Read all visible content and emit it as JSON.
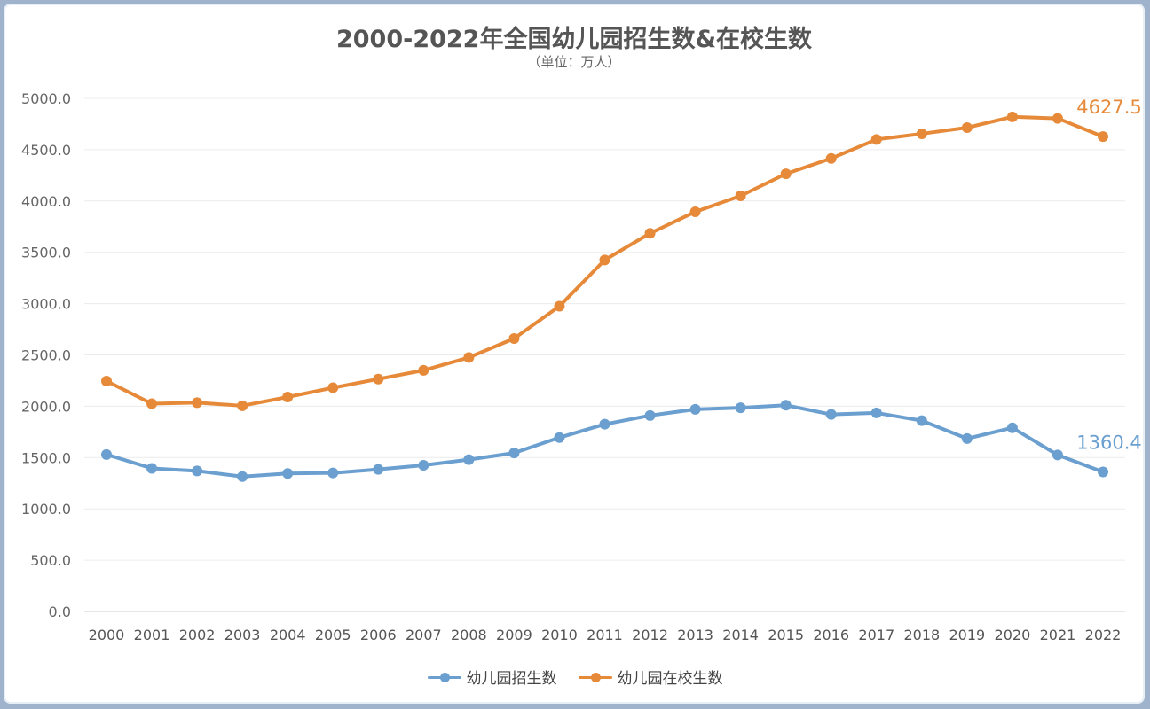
{
  "header": {
    "title": "2000-2022年全国幼儿园招生数&在校生数",
    "subtitle": "（单位：万人）"
  },
  "chart_data": {
    "type": "line",
    "title": "2000-2022年全国幼儿园招生数&在校生数",
    "subtitle": "（单位：万人）",
    "xlabel": "",
    "ylabel": "",
    "x": [
      "2000",
      "2001",
      "2002",
      "2003",
      "2004",
      "2005",
      "2006",
      "2007",
      "2008",
      "2009",
      "2010",
      "2011",
      "2012",
      "2013",
      "2014",
      "2015",
      "2016",
      "2017",
      "2018",
      "2019",
      "2020",
      "2021",
      "2022"
    ],
    "yticks": [
      "0.0",
      "500.0",
      "1000.0",
      "1500.0",
      "2000.0",
      "2500.0",
      "3000.0",
      "3500.0",
      "4000.0",
      "4500.0",
      "5000.0"
    ],
    "ylim": [
      0,
      5000
    ],
    "grid": true,
    "legend_position": "bottom",
    "series": [
      {
        "name": "幼儿园招生数",
        "color": "#6a9fcf",
        "values": [
          1530,
          1395,
          1370,
          1315,
          1345,
          1350,
          1385,
          1425,
          1480,
          1545,
          1695,
          1825,
          1910,
          1970,
          1985,
          2010,
          1920,
          1935,
          1860,
          1685,
          1790,
          1525,
          1360.4
        ],
        "end_label": "1360.4"
      },
      {
        "name": "幼儿园在校生数",
        "color": "#e68a3a",
        "values": [
          2245,
          2025,
          2035,
          2005,
          2090,
          2180,
          2265,
          2350,
          2475,
          2660,
          2975,
          3425,
          3685,
          3895,
          4050,
          4265,
          4415,
          4600,
          4655,
          4715,
          4820,
          4805,
          4627.5
        ],
        "end_label": "4627.5"
      }
    ]
  }
}
